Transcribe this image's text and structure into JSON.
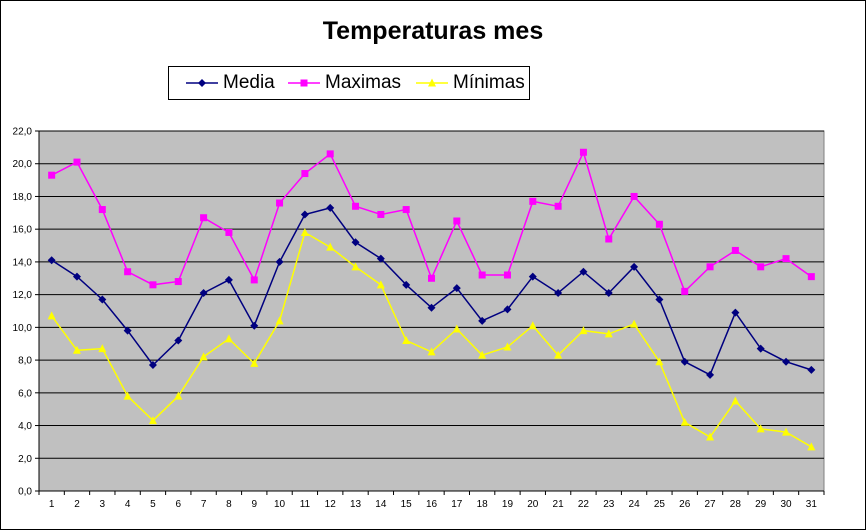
{
  "chart_data": {
    "type": "line",
    "title": "Temperaturas mes",
    "xlabel": "",
    "ylabel": "",
    "categories": [
      "1",
      "2",
      "3",
      "4",
      "5",
      "6",
      "7",
      "8",
      "9",
      "10",
      "11",
      "12",
      "13",
      "14",
      "15",
      "16",
      "17",
      "18",
      "19",
      "20",
      "21",
      "22",
      "23",
      "24",
      "25",
      "26",
      "27",
      "28",
      "29",
      "30",
      "31"
    ],
    "y_ticks": [
      "0,0",
      "2,0",
      "4,0",
      "6,0",
      "8,0",
      "10,0",
      "12,0",
      "14,0",
      "16,0",
      "18,0",
      "20,0",
      "22,0"
    ],
    "ylim": [
      0,
      22
    ],
    "grid": true,
    "legend_position": "top",
    "plot_background": "#C0C0C0",
    "series": [
      {
        "name": "Media",
        "color": "#000080",
        "marker": "diamond",
        "values": [
          14.1,
          13.1,
          11.7,
          9.8,
          7.7,
          9.2,
          12.1,
          12.9,
          10.1,
          14.0,
          16.9,
          17.3,
          15.2,
          14.2,
          12.6,
          11.2,
          12.4,
          10.4,
          11.1,
          13.1,
          12.1,
          13.4,
          12.1,
          13.7,
          11.7,
          7.9,
          7.1,
          10.9,
          8.7,
          7.9,
          7.4
        ]
      },
      {
        "name": "Maximas",
        "color": "#FF00FF",
        "marker": "square",
        "values": [
          19.3,
          20.1,
          17.2,
          13.4,
          12.6,
          12.8,
          16.7,
          15.8,
          12.9,
          17.6,
          19.4,
          20.6,
          17.4,
          16.9,
          17.2,
          13.0,
          16.5,
          13.2,
          13.2,
          17.7,
          17.4,
          20.7,
          15.4,
          18.0,
          16.3,
          12.2,
          13.7,
          14.7,
          13.7,
          14.2,
          13.1
        ]
      },
      {
        "name": "Mínimas",
        "color": "#FFFF00",
        "marker": "triangle",
        "values": [
          10.7,
          8.6,
          8.7,
          5.8,
          4.3,
          5.8,
          8.2,
          9.3,
          7.8,
          10.4,
          15.8,
          14.9,
          13.7,
          12.6,
          9.2,
          8.5,
          9.9,
          8.3,
          8.8,
          10.1,
          8.3,
          9.8,
          9.6,
          10.2,
          7.9,
          4.2,
          3.3,
          5.5,
          3.8,
          3.6,
          2.7
        ]
      }
    ]
  }
}
